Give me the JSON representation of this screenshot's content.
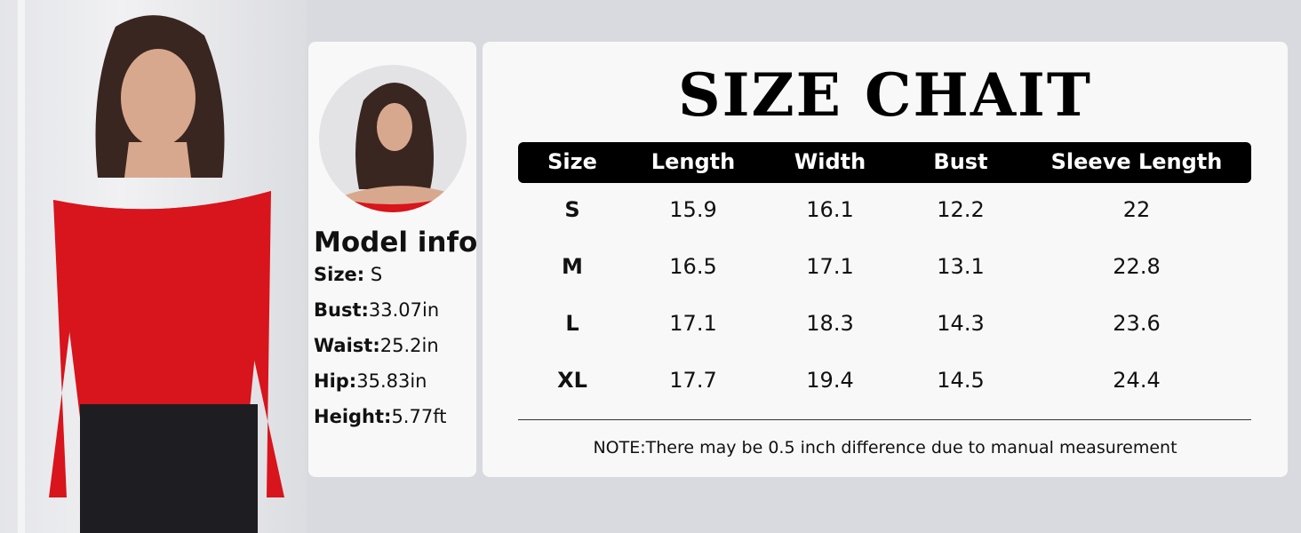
{
  "title": "SIZE CHAIT",
  "model_info": {
    "heading": "Model info",
    "rows": [
      {
        "label": "Size:",
        "value": " S"
      },
      {
        "label": "Bust:",
        "value": "33.07in"
      },
      {
        "label": "Waist:",
        "value": "25.2in"
      },
      {
        "label": "Hip:",
        "value": "35.83in"
      },
      {
        "label": "Height:",
        "value": "5.77ft"
      }
    ]
  },
  "table": {
    "headers": [
      "Size",
      "Length",
      "Width",
      "Bust",
      "Sleeve Length"
    ],
    "rows": [
      [
        "S",
        "15.9",
        "16.1",
        "12.2",
        "22"
      ],
      [
        "M",
        "16.5",
        "17.1",
        "13.1",
        "22.8"
      ],
      [
        "L",
        "17.1",
        "18.3",
        "14.3",
        "23.6"
      ],
      [
        "XL",
        "17.7",
        "19.4",
        "14.5",
        "24.4"
      ]
    ]
  },
  "note": "NOTE:There may be 0.5 inch difference due to manual measurement",
  "colors": {
    "garment": "#d8141c",
    "header": "#000000"
  }
}
